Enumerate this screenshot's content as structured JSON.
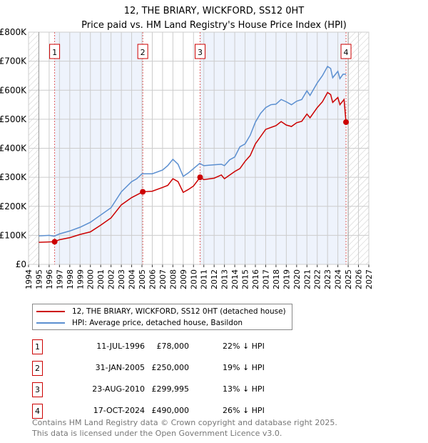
{
  "chart_data": {
    "type": "line",
    "title": "12, THE BRIARY, WICKFORD, SS12 0HT",
    "subtitle": "Price paid vs. HM Land Registry's House Price Index (HPI)",
    "xlim": [
      1994,
      2027
    ],
    "ylim": [
      0,
      800000
    ],
    "x_ticks": [
      "1994",
      "1995",
      "1996",
      "1997",
      "1998",
      "1999",
      "2000",
      "2001",
      "2002",
      "2003",
      "2004",
      "2005",
      "2006",
      "2007",
      "2008",
      "2009",
      "2010",
      "2011",
      "2012",
      "2013",
      "2014",
      "2015",
      "2016",
      "2017",
      "2018",
      "2019",
      "2020",
      "2021",
      "2022",
      "2023",
      "2024",
      "2025",
      "2026",
      "2027"
    ],
    "y_ticks": [
      {
        "v": 0,
        "label": "£0"
      },
      {
        "v": 100000,
        "label": "£100K"
      },
      {
        "v": 200000,
        "label": "£200K"
      },
      {
        "v": 300000,
        "label": "£300K"
      },
      {
        "v": 400000,
        "label": "£400K"
      },
      {
        "v": 500000,
        "label": "£500K"
      },
      {
        "v": 600000,
        "label": "£600K"
      },
      {
        "v": 700000,
        "label": "£700K"
      },
      {
        "v": 800000,
        "label": "£800K"
      }
    ],
    "grid": true,
    "series": [
      {
        "name": "12, THE BRIARY, WICKFORD, SS12 0HT (detached house)",
        "color": "#cc0000",
        "x": [
          1995,
          1996.53,
          1997,
          1998,
          1999,
          2000,
          2001,
          2002,
          2003,
          2004,
          2005.08,
          2006,
          2007,
          2007.5,
          2008,
          2008.5,
          2009,
          2009.5,
          2010,
          2010.64,
          2011,
          2012,
          2012.7,
          2013,
          2014,
          2014.5,
          2015,
          2015.5,
          2016,
          2016.5,
          2017,
          2018,
          2018.5,
          2019,
          2019.5,
          2020,
          2020.5,
          2021,
          2021.3,
          2022,
          2022.5,
          2023,
          2023.3,
          2023.5,
          2024,
          2024.2,
          2024.6,
          2024.79
        ],
        "y": [
          76,
          78,
          85,
          92,
          103,
          112,
          135,
          160,
          205,
          230,
          250,
          252,
          265,
          272,
          295,
          285,
          248,
          258,
          270,
          300,
          292,
          297,
          308,
          295,
          320,
          330,
          355,
          375,
          415,
          440,
          465,
          478,
          492,
          480,
          475,
          488,
          493,
          518,
          505,
          540,
          560,
          592,
          585,
          558,
          575,
          550,
          568,
          490
        ]
      },
      {
        "name": "HPI: Average price, detached house, Basildon",
        "color": "#5b8fd0",
        "x": [
          1995,
          1996,
          1996.5,
          1997,
          1998,
          1999,
          2000,
          2001,
          2002,
          2003,
          2004,
          2004.5,
          2005,
          2006,
          2007,
          2007.5,
          2008,
          2008.5,
          2009,
          2009.5,
          2010,
          2010.6,
          2011,
          2012,
          2012.7,
          2013,
          2013.5,
          2014,
          2014.5,
          2015,
          2015.5,
          2016,
          2016.5,
          2017,
          2017.5,
          2018,
          2018.5,
          2019,
          2019.5,
          2020,
          2020.5,
          2021,
          2021.3,
          2022,
          2022.5,
          2023,
          2023.3,
          2023.5,
          2024,
          2024.2,
          2024.5,
          2024.8
        ],
        "y": [
          98,
          100,
          97,
          105,
          115,
          128,
          145,
          170,
          195,
          250,
          285,
          295,
          312,
          312,
          325,
          340,
          362,
          345,
          303,
          315,
          330,
          348,
          340,
          343,
          345,
          340,
          360,
          370,
          405,
          415,
          445,
          490,
          520,
          540,
          550,
          552,
          568,
          560,
          550,
          562,
          568,
          598,
          582,
          625,
          650,
          682,
          675,
          643,
          665,
          640,
          655,
          655
        ]
      }
    ],
    "y_units": "thousands GBP",
    "sales": [
      {
        "id": "1",
        "x": 1996.53,
        "y": 78,
        "date": "11-JUL-1996",
        "price": "£78,000",
        "hpi": "22% ↓ HPI"
      },
      {
        "id": "2",
        "x": 2005.08,
        "y": 250,
        "date": "31-JAN-2005",
        "price": "£250,000",
        "hpi": "19% ↓ HPI"
      },
      {
        "id": "3",
        "x": 2010.64,
        "y": 300,
        "date": "23-AUG-2010",
        "price": "£299,995",
        "hpi": "13% ↓ HPI"
      },
      {
        "id": "4",
        "x": 2024.79,
        "y": 490,
        "date": "17-OCT-2024",
        "price": "£490,000",
        "hpi": "26% ↓ HPI"
      }
    ],
    "legend_placement": "below"
  },
  "footer": [
    "Contains HM Land Registry data © Crown copyright and database right 2025.",
    "This data is licensed under the Open Government Licence v3.0."
  ]
}
